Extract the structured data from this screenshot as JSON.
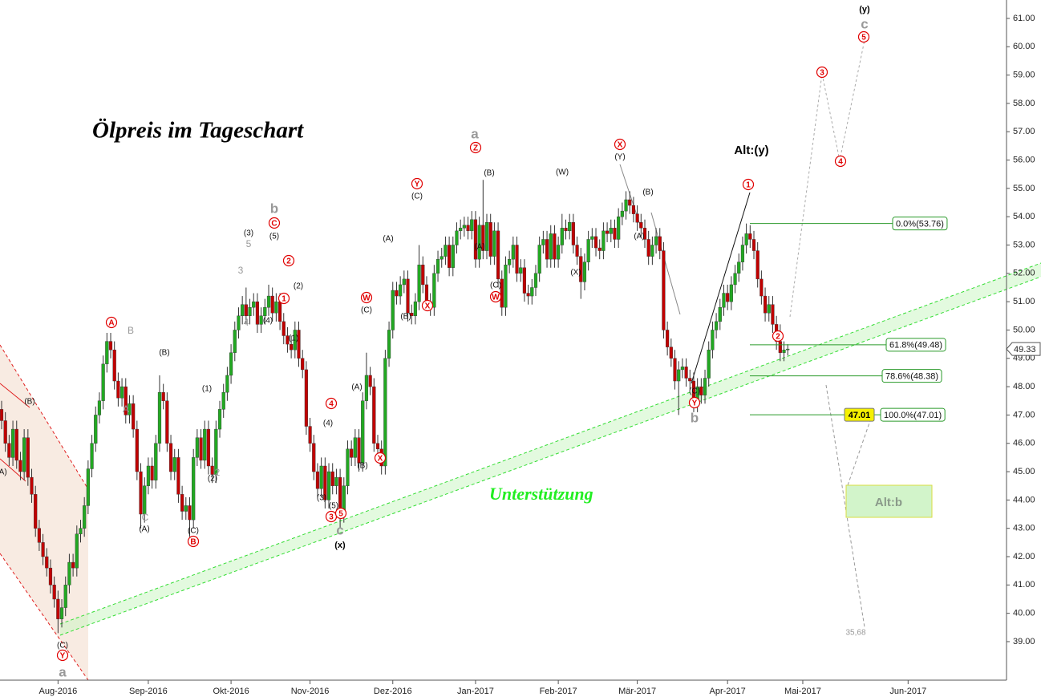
{
  "chart_data": {
    "type": "candlestick",
    "title": "Ölpreis im Tageschart",
    "support_label": "Unterstützung",
    "ylim": [
      37.64,
      61.65
    ],
    "yticks": [
      {
        "value": 39,
        "label": "39.00"
      },
      {
        "value": 40,
        "label": "40.00"
      },
      {
        "value": 41,
        "label": "41.00"
      },
      {
        "value": 42,
        "label": "42.00"
      },
      {
        "value": 43,
        "label": "43.00"
      },
      {
        "value": 44,
        "label": "44.00"
      },
      {
        "value": 45,
        "label": "45.00"
      },
      {
        "value": 46,
        "label": "46.00"
      },
      {
        "value": 47,
        "label": "47.00"
      },
      {
        "value": 48,
        "label": "48.00"
      },
      {
        "value": 49,
        "label": "49.00"
      },
      {
        "value": 50,
        "label": "50.00"
      },
      {
        "value": 51,
        "label": "51.00"
      },
      {
        "value": 52,
        "label": "52.00"
      },
      {
        "value": 53,
        "label": "53.00"
      },
      {
        "value": 54,
        "label": "54.00"
      },
      {
        "value": 55,
        "label": "55.00"
      },
      {
        "value": 56,
        "label": "56.00"
      },
      {
        "value": 57,
        "label": "57.00"
      },
      {
        "value": 58,
        "label": "58.00"
      },
      {
        "value": 59,
        "label": "59.00"
      },
      {
        "value": 60,
        "label": "60.00"
      },
      {
        "value": 61,
        "label": "61.00"
      }
    ],
    "up_color": "#22a822",
    "down_color": "#c00000",
    "categories": [
      null,
      null,
      null,
      null,
      null,
      null,
      null,
      null,
      null,
      null,
      null,
      null,
      null,
      null,
      null,
      "Aug-2016",
      null,
      null,
      null,
      null,
      null,
      null,
      null,
      null,
      null,
      null,
      null,
      null,
      null,
      null,
      null,
      null,
      null,
      null,
      null,
      null,
      null,
      null,
      null,
      "Sep-2016",
      null,
      null,
      null,
      null,
      null,
      null,
      null,
      null,
      null,
      null,
      null,
      null,
      null,
      null,
      null,
      null,
      null,
      null,
      null,
      null,
      null,
      "Okt-2016",
      null,
      null,
      null,
      null,
      null,
      null,
      null,
      null,
      null,
      null,
      null,
      null,
      null,
      null,
      null,
      null,
      null,
      null,
      null,
      null,
      "Nov-2016",
      null,
      null,
      null,
      null,
      null,
      null,
      null,
      null,
      null,
      null,
      null,
      null,
      null,
      null,
      null,
      null,
      null,
      null,
      null,
      null,
      null,
      "Dez-2016",
      null,
      null,
      null,
      null,
      null,
      null,
      null,
      null,
      null,
      null,
      null,
      null,
      null,
      null,
      null,
      null,
      null,
      null,
      null,
      null,
      null,
      "Jan-2017",
      null,
      null,
      null,
      null,
      null,
      null,
      null,
      null,
      null,
      null,
      null,
      null,
      null,
      null,
      null,
      null,
      null,
      null,
      null,
      null,
      null,
      "Feb-2017",
      null,
      null,
      null,
      null,
      null,
      null,
      null,
      null,
      null,
      null,
      null,
      null,
      null,
      null,
      null,
      null,
      null,
      null,
      null,
      null,
      "Mär-2017",
      null,
      null,
      null,
      null,
      null,
      null,
      null,
      null,
      null,
      null,
      null,
      null,
      null,
      null,
      null,
      null,
      null,
      null,
      null,
      null,
      null,
      null,
      null,
      "Apr-2017",
      null,
      null,
      null,
      null,
      null,
      null,
      null,
      null,
      null,
      null,
      null,
      null,
      null,
      null,
      null,
      null,
      null,
      null,
      null,
      "Mai-2017",
      null,
      null,
      null,
      null,
      null,
      null,
      null,
      null,
      null,
      null,
      null,
      null,
      null,
      null,
      null,
      null,
      null,
      null,
      null,
      null,
      null,
      null,
      null,
      null,
      null,
      null,
      null,
      "Jun-2017",
      null,
      null,
      null,
      null,
      null,
      null,
      null,
      null,
      null,
      null,
      null,
      null,
      null,
      null,
      null,
      null,
      null,
      null,
      null,
      null,
      null,
      null,
      null,
      null,
      null
    ],
    "open": [
      47.2,
      46.8,
      46.0,
      45.5,
      46.5,
      45.4,
      45.0,
      46.2,
      44.8,
      44.2,
      43.0,
      42.5,
      42.0,
      41.6,
      41.0,
      40.5,
      39.8,
      40.2,
      41.0,
      41.8,
      41.6,
      42.8,
      43.0,
      43.8,
      45.1,
      46.0,
      47.0,
      47.5,
      48.8,
      49.6,
      49.3,
      48.2,
      47.6,
      48.0,
      47.0,
      47.4,
      46.5,
      45.0,
      43.5,
      44.5,
      45.2,
      44.7,
      46.0,
      47.8,
      47.5,
      46.0,
      45.0,
      45.5,
      44.2,
      43.6,
      43.8,
      43.3,
      45.5,
      46.2,
      45.4,
      46.5,
      45.2,
      44.9,
      46.5,
      47.2,
      47.8,
      48.4,
      49.2,
      50.0,
      50.5,
      50.9,
      50.5,
      50.8,
      51.0,
      50.2,
      50.5,
      50.8,
      51.2,
      50.6,
      51.0,
      50.3,
      49.8,
      49.5,
      49.3,
      50.0,
      49.0,
      48.6,
      46.6,
      46.0,
      45.0,
      44.4,
      45.2,
      44.0,
      45.0,
      44.5,
      44.8,
      43.5,
      44.5,
      45.8,
      45.5,
      46.2,
      45.3,
      47.5,
      48.4,
      48.0,
      46.0,
      45.8,
      45.2,
      49.0,
      50.0,
      51.4,
      51.2,
      51.6,
      51.8,
      50.6,
      50.5,
      51.0,
      52.3,
      51.6,
      51.0,
      50.8,
      52.0,
      52.5,
      52.6,
      53.0,
      52.2,
      53.0,
      53.5,
      53.6,
      53.7,
      53.5,
      53.9,
      52.5,
      53.7,
      52.8,
      53.8,
      52.6,
      53.5,
      51.8,
      50.8,
      52.3,
      52.5,
      53.0,
      52.0,
      52.2,
      51.3,
      51.2,
      51.5,
      52.0,
      53.0,
      53.2,
      52.5,
      53.4,
      52.5,
      53.0,
      53.6,
      53.5,
      53.8,
      53.0,
      52.6,
      51.7,
      52.4,
      53.2,
      53.3,
      52.9,
      52.8,
      53.5,
      53.4,
      53.6,
      53.2,
      54.0,
      54.2,
      54.6,
      54.4,
      54.1,
      53.8,
      53.6,
      53.2,
      52.6,
      53.0,
      53.3,
      52.8,
      50.0,
      49.4,
      49.0,
      48.2,
      48.6,
      48.7,
      48.3,
      48.2,
      47.4,
      48.0,
      47.7,
      48.3,
      49.3,
      50.0,
      50.3,
      50.8,
      51.3,
      51.0,
      51.6,
      52.0,
      52.4,
      53.0,
      53.4,
      53.2,
      52.8,
      51.8,
      51.2,
      50.6,
      50.9,
      50.2,
      49.6,
      49.2,
      49.3,
      null,
      null,
      null,
      null,
      null,
      null,
      null,
      null,
      null,
      null,
      null,
      null,
      null,
      null,
      null,
      null,
      null,
      null,
      null,
      null,
      null,
      null,
      null,
      null,
      null,
      null,
      null,
      null,
      null,
      null,
      null,
      null,
      null,
      null,
      null,
      null,
      null,
      null,
      null,
      null,
      null,
      null,
      null,
      null,
      null,
      null,
      null,
      null,
      null,
      null,
      null,
      null,
      null,
      null,
      null,
      null,
      null
    ],
    "high": [
      47.5,
      47.1,
      46.3,
      46.8,
      46.8,
      45.7,
      46.5,
      46.5,
      45.1,
      44.5,
      43.3,
      42.8,
      42.3,
      41.9,
      41.3,
      40.8,
      40.5,
      41.3,
      42.1,
      42.1,
      43.1,
      43.3,
      44.1,
      45.4,
      46.3,
      47.3,
      47.8,
      49.1,
      49.9,
      49.9,
      49.6,
      48.5,
      48.3,
      48.3,
      47.7,
      47.7,
      46.8,
      45.3,
      44.8,
      45.5,
      45.5,
      46.3,
      48.4,
      48.1,
      47.8,
      46.3,
      45.8,
      45.8,
      44.5,
      44.1,
      44.1,
      45.8,
      46.5,
      46.5,
      46.8,
      46.8,
      45.5,
      46.8,
      47.5,
      48.1,
      48.7,
      49.5,
      50.3,
      50.8,
      51.2,
      51.5,
      51.1,
      51.3,
      51.3,
      50.8,
      51.1,
      51.6,
      51.5,
      51.3,
      51.3,
      50.6,
      50.1,
      49.8,
      50.3,
      50.3,
      49.3,
      48.9,
      46.9,
      46.3,
      45.3,
      45.5,
      45.5,
      45.3,
      45.3,
      45.1,
      45.1,
      44.8,
      46.1,
      46.1,
      46.5,
      46.5,
      47.8,
      49.2,
      48.7,
      48.3,
      46.3,
      46.1,
      49.3,
      50.3,
      51.7,
      51.7,
      51.9,
      52.1,
      52.1,
      50.9,
      51.3,
      53.0,
      52.6,
      51.9,
      51.3,
      52.3,
      52.8,
      52.9,
      53.3,
      53.3,
      53.3,
      53.8,
      53.9,
      54.0,
      54.0,
      54.2,
      54.2,
      54.0,
      55.3,
      54.1,
      54.1,
      53.8,
      53.8,
      52.1,
      52.6,
      52.8,
      53.3,
      53.3,
      52.5,
      52.5,
      51.6,
      51.8,
      52.3,
      53.3,
      53.5,
      53.5,
      53.7,
      53.7,
      53.3,
      54.1,
      53.9,
      54.1,
      54.1,
      53.3,
      52.9,
      52.7,
      53.5,
      53.6,
      53.6,
      53.2,
      53.8,
      53.8,
      53.9,
      53.9,
      54.3,
      54.5,
      54.9,
      54.9,
      54.7,
      54.4,
      54.1,
      53.9,
      53.5,
      53.3,
      53.6,
      53.6,
      53.1,
      50.3,
      49.7,
      49.3,
      48.9,
      49.0,
      49.0,
      48.6,
      48.5,
      48.3,
      48.3,
      48.6,
      49.6,
      50.3,
      50.6,
      51.1,
      51.6,
      51.6,
      51.9,
      52.3,
      52.7,
      53.3,
      53.76,
      53.7,
      53.5,
      53.1,
      52.1,
      51.5,
      51.2,
      51.2,
      50.5,
      50.2,
      49.6,
      49.5,
      null,
      null,
      null,
      null,
      null,
      null,
      null,
      null,
      null,
      null,
      null,
      null,
      null,
      null,
      null,
      null,
      null,
      null,
      null,
      null,
      null,
      null,
      null,
      null,
      null,
      null,
      null,
      null,
      null,
      null,
      null,
      null,
      null,
      null,
      null,
      null,
      null,
      null,
      null,
      null,
      null,
      null,
      null,
      null,
      null,
      null,
      null,
      null,
      null,
      null,
      null,
      null,
      null,
      null,
      null,
      null,
      null
    ],
    "low": [
      46.5,
      45.7,
      45.2,
      45.2,
      45.1,
      44.7,
      44.7,
      44.5,
      43.9,
      42.7,
      42.2,
      41.7,
      41.3,
      40.7,
      40.2,
      39.3,
      39.5,
      39.9,
      40.7,
      41.3,
      41.3,
      42.5,
      42.7,
      43.5,
      44.8,
      45.7,
      46.7,
      47.2,
      48.5,
      49.0,
      47.9,
      47.3,
      47.3,
      46.7,
      46.7,
      46.2,
      44.7,
      43.0,
      43.2,
      44.2,
      44.4,
      44.4,
      45.7,
      47.2,
      45.7,
      44.7,
      44.7,
      43.9,
      43.3,
      43.3,
      42.7,
      43.0,
      45.2,
      45.1,
      45.1,
      44.9,
      44.6,
      44.6,
      46.2,
      46.9,
      47.5,
      48.1,
      48.9,
      49.7,
      50.2,
      50.2,
      50.2,
      50.5,
      49.9,
      49.9,
      50.2,
      50.5,
      50.3,
      50.3,
      50.0,
      49.5,
      49.2,
      49.0,
      49.0,
      48.7,
      48.3,
      46.3,
      45.7,
      44.7,
      44.1,
      44.1,
      43.7,
      43.7,
      44.2,
      44.2,
      43.0,
      43.2,
      44.2,
      45.2,
      45.2,
      45.0,
      45.0,
      47.2,
      47.7,
      45.7,
      45.5,
      44.9,
      44.9,
      48.7,
      49.7,
      50.9,
      50.9,
      51.3,
      50.3,
      50.2,
      50.2,
      50.7,
      51.3,
      50.7,
      50.5,
      50.5,
      51.7,
      52.2,
      52.3,
      51.9,
      51.9,
      52.7,
      53.2,
      53.3,
      53.2,
      53.2,
      52.2,
      52.2,
      52.5,
      52.5,
      52.3,
      52.3,
      51.5,
      50.5,
      50.5,
      52.0,
      52.2,
      51.7,
      51.7,
      51.0,
      50.9,
      50.9,
      51.2,
      51.7,
      52.7,
      52.2,
      52.2,
      52.2,
      52.2,
      52.7,
      53.2,
      53.2,
      52.7,
      52.3,
      51.1,
      51.4,
      52.1,
      52.9,
      52.6,
      52.5,
      52.5,
      53.1,
      53.1,
      52.9,
      52.9,
      53.7,
      53.9,
      54.1,
      53.8,
      53.5,
      53.3,
      52.9,
      52.3,
      52.3,
      52.7,
      52.5,
      49.7,
      49.1,
      48.7,
      47.9,
      47.0,
      48.3,
      48.0,
      47.9,
      47.1,
      47.1,
      47.4,
      47.4,
      48.0,
      49.0,
      49.7,
      50.0,
      50.5,
      50.7,
      50.7,
      51.3,
      51.7,
      52.1,
      52.7,
      52.9,
      52.5,
      51.5,
      50.9,
      50.3,
      50.3,
      49.9,
      49.3,
      48.9,
      48.9,
      49.1,
      null,
      null,
      null,
      null,
      null,
      null,
      null,
      null,
      null,
      null,
      null,
      null,
      null,
      null,
      null,
      null,
      null,
      null,
      null,
      null,
      null,
      null,
      null,
      null,
      null,
      null,
      null,
      null,
      null,
      null,
      null,
      null,
      null,
      null,
      null,
      null,
      null,
      null,
      null,
      null,
      null,
      null,
      null,
      null,
      null,
      null,
      null,
      null,
      null,
      null,
      null,
      null,
      null,
      null,
      null,
      null,
      null
    ],
    "close": [
      46.8,
      46.0,
      45.5,
      46.5,
      45.4,
      45.0,
      46.2,
      44.8,
      44.2,
      43.0,
      42.5,
      42.0,
      41.6,
      41.0,
      40.5,
      39.8,
      40.2,
      41.0,
      41.8,
      41.6,
      42.8,
      43.0,
      43.8,
      45.1,
      46.0,
      47.0,
      47.5,
      48.8,
      49.6,
      49.3,
      48.2,
      47.6,
      48.0,
      47.0,
      47.4,
      46.5,
      45.0,
      43.5,
      44.5,
      45.2,
      44.7,
      46.0,
      47.8,
      47.5,
      46.0,
      45.0,
      45.5,
      44.2,
      43.6,
      43.8,
      43.3,
      45.5,
      46.2,
      45.4,
      46.5,
      45.2,
      44.9,
      46.5,
      47.2,
      47.8,
      48.4,
      49.2,
      50.0,
      50.5,
      50.9,
      50.5,
      50.8,
      51.0,
      50.2,
      50.5,
      50.8,
      51.2,
      50.6,
      51.0,
      50.3,
      49.8,
      49.5,
      49.3,
      50.0,
      49.0,
      48.6,
      46.6,
      46.0,
      45.0,
      44.4,
      45.2,
      44.0,
      45.0,
      44.5,
      44.8,
      43.5,
      44.5,
      45.8,
      45.5,
      46.2,
      45.3,
      47.5,
      48.4,
      48.0,
      46.0,
      45.8,
      45.2,
      49.0,
      50.0,
      51.4,
      51.2,
      51.6,
      51.8,
      50.6,
      50.5,
      51.0,
      52.3,
      51.6,
      51.0,
      50.8,
      52.0,
      52.5,
      52.6,
      53.0,
      52.2,
      53.0,
      53.5,
      53.6,
      53.7,
      53.5,
      53.9,
      52.5,
      53.7,
      52.8,
      53.8,
      52.6,
      53.5,
      51.8,
      50.8,
      52.3,
      52.5,
      53.0,
      52.0,
      52.2,
      51.3,
      51.2,
      51.5,
      52.0,
      53.0,
      53.2,
      52.5,
      53.4,
      52.5,
      53.0,
      53.6,
      53.5,
      53.8,
      53.0,
      52.6,
      51.7,
      52.4,
      53.2,
      53.3,
      52.9,
      52.8,
      53.5,
      53.4,
      53.6,
      53.2,
      54.0,
      54.2,
      54.6,
      54.4,
      54.1,
      53.8,
      53.6,
      53.2,
      52.6,
      53.0,
      53.3,
      52.8,
      50.0,
      49.4,
      49.0,
      48.2,
      48.6,
      48.7,
      48.3,
      48.2,
      47.4,
      48.0,
      47.7,
      48.3,
      49.3,
      50.0,
      50.3,
      50.8,
      51.3,
      51.0,
      51.6,
      52.0,
      52.4,
      53.0,
      53.4,
      53.2,
      52.8,
      51.8,
      51.2,
      50.6,
      50.9,
      50.2,
      49.6,
      49.2,
      49.3,
      49.33,
      null,
      null,
      null,
      null,
      null,
      null,
      null,
      null,
      null,
      null,
      null,
      null,
      null,
      null,
      null,
      null,
      null,
      null,
      null,
      null,
      null,
      null,
      null,
      null,
      null,
      null,
      null,
      null,
      null,
      null,
      null,
      null,
      null,
      null,
      null,
      null,
      null,
      null,
      null,
      null,
      null,
      null,
      null,
      null,
      null,
      null,
      null,
      null,
      null,
      null,
      null,
      null,
      null,
      null,
      null,
      null,
      null
    ],
    "fib_levels": [
      {
        "value": 53.76,
        "label": "0.0%(53.76)"
      },
      {
        "value": 49.48,
        "label": "61.8%(49.48)"
      },
      {
        "value": 48.38,
        "label": "78.6%(48.38)"
      },
      {
        "value": 47.01,
        "label": "100.0%(47.01)"
      }
    ],
    "price_marker": 47.01,
    "last_price": 49.33,
    "annotations": [
      "(B)",
      "(A)",
      "(C)",
      "Y",
      "a",
      "A",
      "B",
      "A",
      "C",
      "(A)",
      "(B)",
      "(C)",
      "B",
      "(1)",
      "(2)",
      "2",
      "(3)",
      "5",
      "3",
      "4",
      "(4)",
      "(5)",
      "b",
      "C",
      "2",
      "1",
      "(2)",
      "(1)",
      "(4)",
      "4",
      "(3)",
      "(5)",
      "3",
      "5",
      "c",
      "(x)",
      "(A)",
      "(B)",
      "X",
      "W",
      "(C)",
      "(A)",
      "(B)",
      "X",
      "Y",
      "(C)",
      "a",
      "Z",
      "(B)",
      "(A)",
      "(C)",
      "W",
      "(W)",
      "(X)",
      "X",
      "(Y)",
      "(B)",
      "(A)",
      "(C)",
      "Y",
      "b",
      "1",
      "2",
      "3",
      "4",
      "5",
      "c",
      "(y)",
      "Alt:(y)",
      "35,68",
      "Alt:b"
    ]
  }
}
